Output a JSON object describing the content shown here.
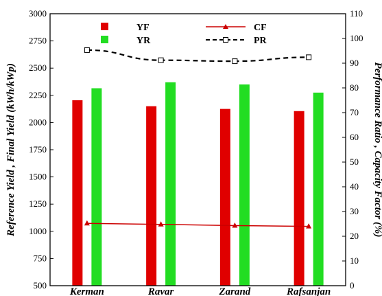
{
  "chart_data": {
    "type": "bar",
    "categories": [
      "Kerman",
      "Ravar",
      "Zarand",
      "Rafsanjan"
    ],
    "series": [
      {
        "name": "YF",
        "axis": "left",
        "kind": "bar",
        "color": "#e00000",
        "values": [
          2205,
          2150,
          2125,
          2105
        ]
      },
      {
        "name": "YR",
        "axis": "left",
        "kind": "bar",
        "color": "#22dd22",
        "values": [
          2315,
          2370,
          2350,
          2275
        ]
      },
      {
        "name": "CF",
        "axis": "right",
        "kind": "line",
        "style": "solid",
        "marker": "triangle",
        "color": "#cc0000",
        "values": [
          25.2,
          24.8,
          24.3,
          24.0
        ]
      },
      {
        "name": "PR",
        "axis": "right",
        "kind": "line",
        "style": "dashed",
        "marker": "open-square",
        "color": "#000000",
        "values": [
          95.3,
          91.2,
          90.8,
          92.4
        ]
      }
    ],
    "left_axis": {
      "label": "Reference Yield , Final Yield (kWh/kWp)",
      "ylim": [
        500,
        3000
      ],
      "ticks": [
        "500",
        "750",
        "1000",
        "1250",
        "1500",
        "1750",
        "2000",
        "2250",
        "2500",
        "2750",
        "3000"
      ]
    },
    "right_axis": {
      "label": "Performance Ratio , Capacity Factor (%)",
      "ylim": [
        0,
        110
      ],
      "ticks": [
        "0",
        "10",
        "20",
        "30",
        "40",
        "50",
        "60",
        "70",
        "80",
        "90",
        "100",
        "110"
      ]
    },
    "legend": {
      "placement": "top"
    },
    "grid": false
  }
}
